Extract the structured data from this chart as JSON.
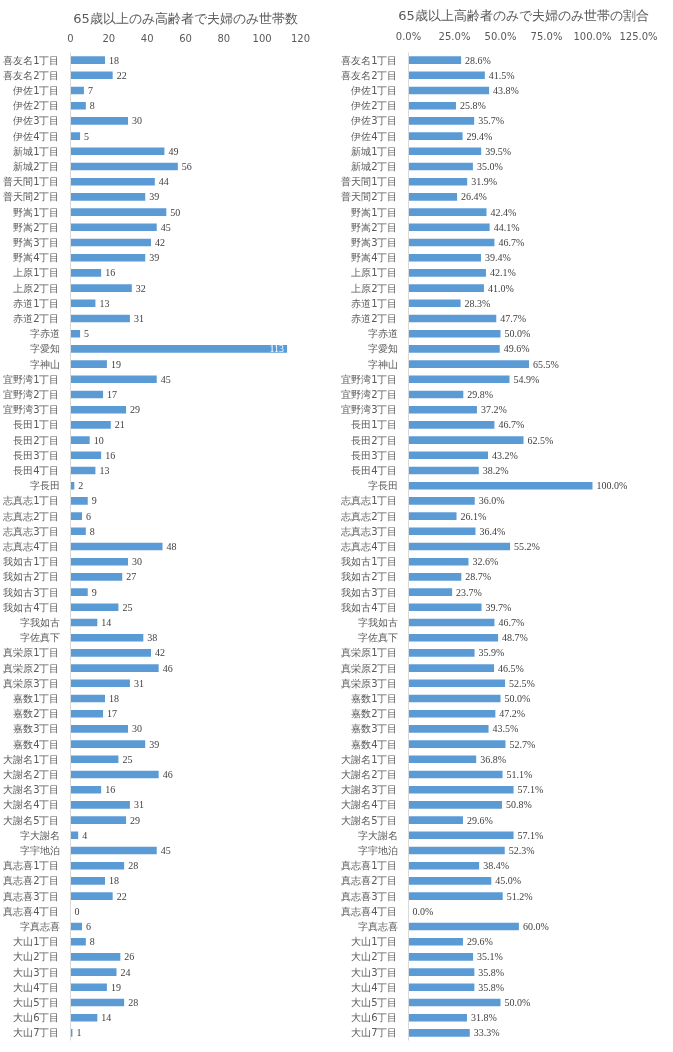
{
  "chart_data": [
    {
      "type": "bar",
      "orientation": "horizontal",
      "title": "65歳以上のみ高齢者で夫婦のみ世帯数",
      "categories": [
        "喜友名1丁目",
        "喜友名2丁目",
        "伊佐1丁目",
        "伊佐2丁目",
        "伊佐3丁目",
        "伊佐4丁目",
        "新城1丁目",
        "新城2丁目",
        "普天間1丁目",
        "普天間2丁目",
        "野嵩1丁目",
        "野嵩2丁目",
        "野嵩3丁目",
        "野嵩4丁目",
        "上原1丁目",
        "上原2丁目",
        "赤道1丁目",
        "赤道2丁目",
        "字赤道",
        "字愛知",
        "字神山",
        "宜野湾1丁目",
        "宜野湾2丁目",
        "宜野湾3丁目",
        "長田1丁目",
        "長田2丁目",
        "長田3丁目",
        "長田4丁目",
        "字長田",
        "志真志1丁目",
        "志真志2丁目",
        "志真志3丁目",
        "志真志4丁目",
        "我如古1丁目",
        "我如古2丁目",
        "我如古3丁目",
        "我如古4丁目",
        "字我如古",
        "字佐真下",
        "真栄原1丁目",
        "真栄原2丁目",
        "真栄原3丁目",
        "嘉数1丁目",
        "嘉数2丁目",
        "嘉数3丁目",
        "嘉数4丁目",
        "大謝名1丁目",
        "大謝名2丁目",
        "大謝名3丁目",
        "大謝名4丁目",
        "大謝名5丁目",
        "字大謝名",
        "字宇地泊",
        "真志喜1丁目",
        "真志喜2丁目",
        "真志喜3丁目",
        "真志喜4丁目",
        "字真志喜",
        "大山1丁目",
        "大山2丁目",
        "大山3丁目",
        "大山4丁目",
        "大山5丁目",
        "大山6丁目",
        "大山7丁目"
      ],
      "values": [
        18,
        22,
        7,
        8,
        30,
        5,
        49,
        56,
        44,
        39,
        50,
        45,
        42,
        39,
        16,
        32,
        13,
        31,
        5,
        113,
        19,
        45,
        17,
        29,
        21,
        10,
        16,
        13,
        2,
        9,
        6,
        8,
        48,
        30,
        27,
        9,
        25,
        14,
        38,
        42,
        46,
        31,
        18,
        17,
        30,
        39,
        25,
        46,
        16,
        31,
        29,
        4,
        45,
        28,
        18,
        22,
        0,
        6,
        8,
        26,
        24,
        19,
        28,
        14,
        1
      ],
      "color": "#5b9bd5",
      "xlim": [
        0,
        120
      ],
      "xticks": [
        0,
        20,
        40,
        60,
        80,
        100,
        120
      ],
      "data_labels": true,
      "grid": false
    },
    {
      "type": "bar",
      "orientation": "horizontal",
      "title": "65歳以上高齢者のみで夫婦のみ世帯の割合",
      "categories": [
        "喜友名1丁目",
        "喜友名2丁目",
        "伊佐1丁目",
        "伊佐2丁目",
        "伊佐3丁目",
        "伊佐4丁目",
        "新城1丁目",
        "新城2丁目",
        "普天間1丁目",
        "普天間2丁目",
        "野嵩1丁目",
        "野嵩2丁目",
        "野嵩3丁目",
        "野嵩4丁目",
        "上原1丁目",
        "上原2丁目",
        "赤道1丁目",
        "赤道2丁目",
        "字赤道",
        "字愛知",
        "字神山",
        "宜野湾1丁目",
        "宜野湾2丁目",
        "宜野湾3丁目",
        "長田1丁目",
        "長田2丁目",
        "長田3丁目",
        "長田4丁目",
        "字長田",
        "志真志1丁目",
        "志真志2丁目",
        "志真志3丁目",
        "志真志4丁目",
        "我如古1丁目",
        "我如古2丁目",
        "我如古3丁目",
        "我如古4丁目",
        "字我如古",
        "字佐真下",
        "真栄原1丁目",
        "真栄原2丁目",
        "真栄原3丁目",
        "嘉数1丁目",
        "嘉数2丁目",
        "嘉数3丁目",
        "嘉数4丁目",
        "大謝名1丁目",
        "大謝名2丁目",
        "大謝名3丁目",
        "大謝名4丁目",
        "大謝名5丁目",
        "字大謝名",
        "字宇地泊",
        "真志喜1丁目",
        "真志喜2丁目",
        "真志喜3丁目",
        "真志喜4丁目",
        "字真志喜",
        "大山1丁目",
        "大山2丁目",
        "大山3丁目",
        "大山4丁目",
        "大山5丁目",
        "大山6丁目",
        "大山7丁目"
      ],
      "values": [
        28.6,
        41.5,
        43.8,
        25.8,
        35.7,
        29.4,
        39.5,
        35.0,
        31.9,
        26.4,
        42.4,
        44.1,
        46.7,
        39.4,
        42.1,
        41.0,
        28.3,
        47.7,
        50.0,
        49.6,
        65.5,
        54.9,
        29.8,
        37.2,
        46.7,
        62.5,
        43.2,
        38.2,
        100.0,
        36.0,
        26.1,
        36.4,
        55.2,
        32.6,
        28.7,
        23.7,
        39.7,
        46.7,
        48.7,
        35.9,
        46.5,
        52.5,
        50.0,
        47.2,
        43.5,
        52.7,
        36.8,
        51.1,
        57.1,
        50.8,
        29.6,
        57.1,
        52.3,
        38.4,
        45.0,
        51.2,
        0.0,
        60.0,
        29.6,
        35.1,
        35.8,
        35.8,
        50.0,
        31.8,
        33.3
      ],
      "value_labels": [
        "28.6%",
        "41.5%",
        "43.8%",
        "25.8%",
        "35.7%",
        "29.4%",
        "39.5%",
        "35.0%",
        "31.9%",
        "26.4%",
        "42.4%",
        "44.1%",
        "46.7%",
        "39.4%",
        "42.1%",
        "41.0%",
        "28.3%",
        "47.7%",
        "50.0%",
        "49.6%",
        "65.5%",
        "54.9%",
        "29.8%",
        "37.2%",
        "46.7%",
        "62.5%",
        "43.2%",
        "38.2%",
        "100.0%",
        "36.0%",
        "26.1%",
        "36.4%",
        "55.2%",
        "32.6%",
        "28.7%",
        "23.7%",
        "39.7%",
        "46.7%",
        "48.7%",
        "35.9%",
        "46.5%",
        "52.5%",
        "50.0%",
        "47.2%",
        "43.5%",
        "52.7%",
        "36.8%",
        "51.1%",
        "57.1%",
        "50.8%",
        "29.6%",
        "57.1%",
        "52.3%",
        "38.4%",
        "45.0%",
        "51.2%",
        "0.0%",
        "60.0%",
        "29.6%",
        "35.1%",
        "35.8%",
        "35.8%",
        "50.0%",
        "31.8%",
        "33.3%"
      ],
      "color": "#5b9bd5",
      "xlim": [
        0,
        125
      ],
      "xticks": [
        {
          "value": 0,
          "label": "0.0%"
        },
        {
          "value": 25,
          "label": "25.0%"
        },
        {
          "value": 50,
          "label": "50.0%"
        },
        {
          "value": 75,
          "label": "75.0%"
        },
        {
          "value": 100,
          "label": "100.0%"
        },
        {
          "value": 125,
          "label": "125.0%"
        }
      ],
      "grid": false
    }
  ]
}
